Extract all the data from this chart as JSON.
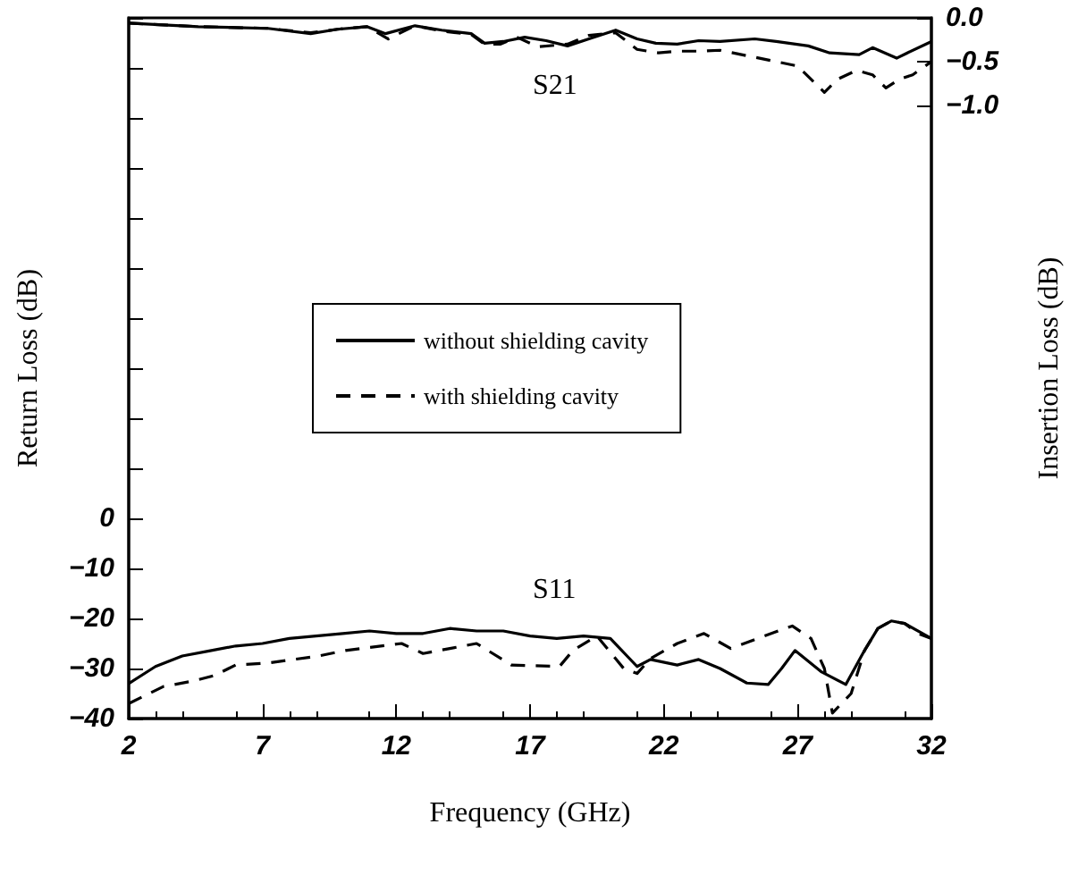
{
  "chart_data": {
    "type": "line",
    "xlabel": "Frequency (GHz)",
    "ylabel": "Return Loss (dB)",
    "y2label": "Insertion Loss (dB)",
    "xlim": [
      2,
      32
    ],
    "xticks": [
      2,
      7,
      12,
      17,
      22,
      27,
      32
    ],
    "ylim": [
      -40,
      100
    ],
    "yticks": [
      {
        "value": -40,
        "label": "−40"
      },
      {
        "value": -30,
        "label": "−30"
      },
      {
        "value": -20,
        "label": "−20"
      },
      {
        "value": -10,
        "label": "−10"
      },
      0,
      {
        "value": 10,
        "label": null
      },
      {
        "value": 20,
        "label": null
      },
      {
        "value": 30,
        "label": null
      },
      {
        "value": 40,
        "label": null
      },
      {
        "value": 50,
        "label": null
      },
      {
        "value": 60,
        "label": null
      },
      {
        "value": 70,
        "label": null
      },
      {
        "value": 80,
        "label": null
      },
      {
        "value": 90,
        "label": null
      },
      {
        "value": 100,
        "label": null
      }
    ],
    "y2lim": [
      -8,
      0
    ],
    "y2ticks": [
      {
        "value": 0,
        "label": "0.0"
      },
      {
        "value": -0.5,
        "label": "−0.5"
      },
      {
        "value": -1,
        "label": "−1.0"
      }
    ],
    "grid": false,
    "legend": "center",
    "marker": "none",
    "annotations": [
      "S21",
      "S11"
    ],
    "series": [
      {
        "name": "without shielding cavity",
        "color": "#000000",
        "line_style": "solid",
        "axis": "y2",
        "x": [
          2,
          4.6,
          7.2,
          8.8,
          9.8,
          10.9,
          11.6,
          12.7,
          13.7,
          14.8,
          15.3,
          16,
          16.8,
          17.6,
          18.4,
          19.2,
          20.2,
          21,
          21.7,
          22.5,
          23.3,
          24.1,
          25.4,
          26.2,
          27.4,
          28.2,
          29.3,
          29.8,
          30.7,
          31.1,
          32
        ],
        "values": [
          -0.06,
          -0.1,
          -0.12,
          -0.18,
          -0.13,
          -0.1,
          -0.18,
          -0.09,
          -0.14,
          -0.18,
          -0.29,
          -0.27,
          -0.22,
          -0.26,
          -0.32,
          -0.24,
          -0.14,
          -0.24,
          -0.29,
          -0.3,
          -0.26,
          -0.27,
          -0.24,
          -0.27,
          -0.32,
          -0.4,
          -0.42,
          -0.34,
          -0.46,
          -0.4,
          -0.27
        ]
      },
      {
        "name": "with shielding cavity",
        "color": "#000000",
        "line_style": "dashed",
        "axis": "y2",
        "x": [
          2,
          4.6,
          7.2,
          8.8,
          9.8,
          10.9,
          11.7,
          12.7,
          13.7,
          14.8,
          15.3,
          15.9,
          16.5,
          17.3,
          18.4,
          19.2,
          20.2,
          21,
          21.8,
          22.5,
          23.3,
          24.1,
          25.4,
          26.2,
          27,
          27.5,
          28,
          28.5,
          29.2,
          29.8,
          30.3,
          30.8,
          31.3,
          32
        ],
        "values": [
          -0.06,
          -0.1,
          -0.12,
          -0.17,
          -0.13,
          -0.1,
          -0.24,
          -0.09,
          -0.15,
          -0.19,
          -0.3,
          -0.3,
          -0.22,
          -0.33,
          -0.3,
          -0.2,
          -0.17,
          -0.36,
          -0.4,
          -0.38,
          -0.38,
          -0.37,
          -0.45,
          -0.5,
          -0.55,
          -0.7,
          -0.85,
          -0.7,
          -0.6,
          -0.65,
          -0.8,
          -0.7,
          -0.65,
          -0.5
        ]
      },
      {
        "color": "#000000",
        "line_style": "solid",
        "x": [
          2,
          3,
          4,
          5,
          6,
          7,
          8,
          9,
          10,
          11,
          12,
          13,
          14,
          15,
          16,
          17,
          18,
          19,
          20,
          21,
          21.5,
          22.5,
          23.3,
          24.1,
          25.1,
          25.9,
          26.4,
          26.9,
          27.9,
          28.8,
          29.5,
          30,
          30.5,
          31,
          32
        ],
        "values": [
          -33,
          -29.6,
          -27.5,
          -26.5,
          -25.5,
          -25,
          -24,
          -23.5,
          -23,
          -22.5,
          -23,
          -23,
          -22,
          -22.5,
          -22.5,
          -23.5,
          -24,
          -23.5,
          -24,
          -29.6,
          -28.2,
          -29.3,
          -28.2,
          -30,
          -32.9,
          -33.2,
          -30,
          -26.4,
          -30.7,
          -33.2,
          -26.4,
          -22,
          -20.5,
          -21,
          -24
        ]
      },
      {
        "color": "#000000",
        "line_style": "dashed",
        "x": [
          2,
          3.3,
          4.4,
          5.2,
          6,
          7.2,
          9.1,
          10.1,
          12.2,
          13,
          14,
          15,
          16.3,
          18.1,
          18.6,
          19.5,
          20.5,
          21,
          21.5,
          22.5,
          23.5,
          24.5,
          25.5,
          26.8,
          27.5,
          28,
          28.3,
          29,
          29.5,
          30,
          30.5,
          31,
          31.5,
          32
        ],
        "values": [
          -37,
          -33.6,
          -32.5,
          -31.4,
          -29.3,
          -28.9,
          -27.5,
          -26.4,
          -25,
          -27,
          -26,
          -25,
          -29.3,
          -29.6,
          -26.4,
          -23.5,
          -30,
          -31,
          -28,
          -25,
          -23,
          -26,
          -24,
          -21.5,
          -24,
          -30,
          -38.9,
          -35,
          -26.4,
          -22,
          -20.5,
          -21,
          -23,
          -24
        ]
      }
    ]
  }
}
